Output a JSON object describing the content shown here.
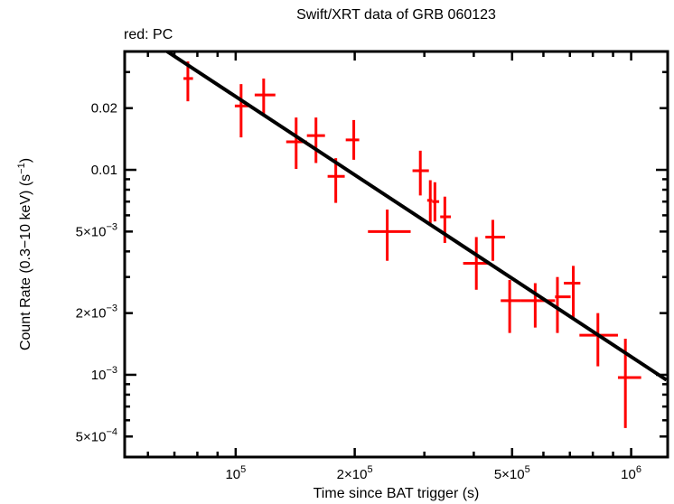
{
  "page": {
    "background": "#ffffff"
  },
  "chart_data": {
    "type": "scatter",
    "title": "Swift/XRT data of GRB 060123",
    "legend_label": "red: PC",
    "xlabel": "Time since BAT trigger (s)",
    "ylabel_parts": {
      "pre": "Count Rate (0.3−10 keV) (s",
      "sup": "−1",
      "post": ")"
    },
    "x_scale": "log",
    "y_scale": "log",
    "xlim": [
      52400,
      1237000
    ],
    "ylim": [
      0.000397,
      0.0378
    ],
    "x_ticks_major": [
      {
        "value": 100000,
        "base": "10",
        "sup": "5"
      },
      {
        "value": 200000,
        "base": "2×10",
        "sup": "5"
      },
      {
        "value": 500000,
        "base": "5×10",
        "sup": "5"
      },
      {
        "value": 1000000,
        "base": "10",
        "sup": "6"
      }
    ],
    "x_ticks_minor": [
      60000,
      70000,
      80000,
      90000,
      300000,
      400000,
      600000,
      700000,
      800000,
      900000
    ],
    "y_ticks_labeled": [
      {
        "value": 0.02,
        "base": "0.02",
        "sup": ""
      },
      {
        "value": 0.01,
        "base": "0.01",
        "sup": ""
      },
      {
        "value": 0.005,
        "base": "5×10",
        "sup": "−3"
      },
      {
        "value": 0.002,
        "base": "2×10",
        "sup": "−3"
      },
      {
        "value": 0.001,
        "base": "10",
        "sup": "−3"
      },
      {
        "value": 0.0005,
        "base": "5×10",
        "sup": "−4"
      }
    ],
    "y_ticks_minor": [
      0.03,
      0.009,
      0.008,
      0.007,
      0.006,
      0.004,
      0.003,
      0.0009,
      0.0008,
      0.0007,
      0.0006
    ],
    "series": [
      {
        "name": "PC",
        "color": "#ff0000",
        "points": [
          {
            "t": 75700,
            "t_lo": 73800,
            "t_hi": 78000,
            "r": 0.0279,
            "r_lo": 0.0216,
            "r_hi": 0.0338
          },
          {
            "t": 103200,
            "t_lo": 99500,
            "t_hi": 107600,
            "r": 0.0205,
            "r_lo": 0.0144,
            "r_hi": 0.0262
          },
          {
            "t": 117700,
            "t_lo": 111700,
            "t_hi": 126000,
            "r": 0.0232,
            "r_lo": 0.0186,
            "r_hi": 0.0279
          },
          {
            "t": 142200,
            "t_lo": 134200,
            "t_hi": 151400,
            "r": 0.0137,
            "r_lo": 0.0101,
            "r_hi": 0.018
          },
          {
            "t": 159600,
            "t_lo": 151400,
            "t_hi": 168200,
            "r": 0.0147,
            "r_lo": 0.0108,
            "r_hi": 0.018
          },
          {
            "t": 179100,
            "t_lo": 170800,
            "t_hi": 188700,
            "r": 0.0093,
            "r_lo": 0.0069,
            "r_hi": 0.0114
          },
          {
            "t": 198900,
            "t_lo": 189800,
            "t_hi": 205300,
            "r": 0.014,
            "r_lo": 0.0112,
            "r_hi": 0.0175
          },
          {
            "t": 241700,
            "t_lo": 216000,
            "t_hi": 277000,
            "r": 0.005,
            "r_lo": 0.0036,
            "r_hi": 0.0064
          },
          {
            "t": 293000,
            "t_lo": 280000,
            "t_hi": 308000,
            "r": 0.0099,
            "r_lo": 0.0075,
            "r_hi": 0.0124
          },
          {
            "t": 310500,
            "t_lo": 305000,
            "t_hi": 314000,
            "r": 0.0071,
            "r_lo": 0.0055,
            "r_hi": 0.0089
          },
          {
            "t": 319000,
            "t_lo": 314000,
            "t_hi": 327000,
            "r": 0.007,
            "r_lo": 0.0056,
            "r_hi": 0.0087
          },
          {
            "t": 338000,
            "t_lo": 329000,
            "t_hi": 350000,
            "r": 0.0059,
            "r_lo": 0.0044,
            "r_hi": 0.0074
          },
          {
            "t": 406000,
            "t_lo": 376000,
            "t_hi": 440000,
            "r": 0.0035,
            "r_lo": 0.0026,
            "r_hi": 0.0047
          },
          {
            "t": 447000,
            "t_lo": 428000,
            "t_hi": 480000,
            "r": 0.0047,
            "r_lo": 0.0036,
            "r_hi": 0.0057
          },
          {
            "t": 493000,
            "t_lo": 468000,
            "t_hi": 525000,
            "r": 0.0023,
            "r_lo": 0.0016,
            "r_hi": 0.0029
          },
          {
            "t": 572000,
            "t_lo": 525000,
            "t_hi": 642000,
            "r": 0.0023,
            "r_lo": 0.0017,
            "r_hi": 0.0028
          },
          {
            "t": 651000,
            "t_lo": 642000,
            "t_hi": 703000,
            "r": 0.0024,
            "r_lo": 0.0016,
            "r_hi": 0.003
          },
          {
            "t": 714000,
            "t_lo": 676000,
            "t_hi": 744000,
            "r": 0.0028,
            "r_lo": 0.0019,
            "r_hi": 0.0034
          },
          {
            "t": 824000,
            "t_lo": 740000,
            "t_hi": 926000,
            "r": 0.00156,
            "r_lo": 0.0011,
            "r_hi": 0.002
          },
          {
            "t": 967000,
            "t_lo": 926000,
            "t_hi": 1060000,
            "r": 0.00097,
            "r_lo": 0.00055,
            "r_hi": 0.0015
          }
        ]
      }
    ],
    "fit_line": {
      "color": "#000000",
      "points": [
        {
          "t": 67100,
          "r": 0.0378
        },
        {
          "t": 1228000,
          "r": 0.000944
        }
      ]
    }
  }
}
